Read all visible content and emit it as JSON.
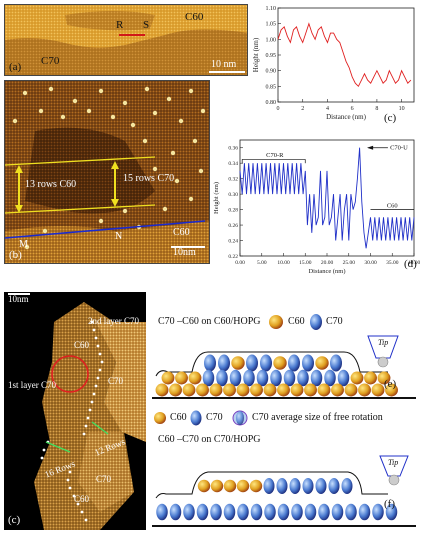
{
  "panel_a": {
    "label": "(a)",
    "c60": "C60",
    "c70": "C70",
    "point_r": "R",
    "point_s": "S",
    "scale": "10 nm"
  },
  "panel_b": {
    "label": "(b)",
    "rows_left": "13 rows C60",
    "rows_right": "15 rows C70",
    "point_m": "M",
    "point_n": "N",
    "c60": "C60",
    "scale": "10nm"
  },
  "panel_c_top": {
    "label": "(c)",
    "ylabel": "Height (nm)",
    "xlabel": "Distance (nm)"
  },
  "panel_d": {
    "label": "(d)",
    "ylabel": "Height (nm)",
    "xlabel": "Distance (nm)",
    "ann_c70r": "C70-R",
    "ann_c70u": "C70-U",
    "ann_c60": "C60"
  },
  "panel_c_bottom": {
    "label": "(c)",
    "scale": "10nm",
    "second_layer": "2nd layer C70",
    "first_layer": "1st layer C70",
    "c60_top": "C60",
    "c70_mid": "C70",
    "c60_bottom": "C60",
    "c70_bottom": "C70",
    "rows16": "16 Rows",
    "rows12": "12 Rows"
  },
  "panel_e": {
    "label": "(e)",
    "title": "C70 –C60 on C60/HOPG",
    "legend_c60": "C60",
    "legend_c70": "C70",
    "tip": "Tip"
  },
  "panel_f": {
    "label": "(f)",
    "legend_c60": "C60",
    "legend_c70": "C70",
    "legend_rot": "C70 average size of free rotation",
    "title": "C60 –C70 on C70/HOPG",
    "tip": "Tip"
  },
  "chart_data": [
    {
      "panel": "(c)",
      "type": "line",
      "xlabel": "Distance (nm)",
      "ylabel": "Height (nm)",
      "xlim": [
        0,
        11
      ],
      "ylim": [
        0.8,
        1.1
      ],
      "xticks": [
        0,
        2,
        4,
        6,
        8,
        10
      ],
      "yticks": [
        0.8,
        0.85,
        0.9,
        0.95,
        1.0,
        1.05,
        1.1
      ],
      "grid": false,
      "color": "#e02020",
      "x": [
        0.0,
        0.25,
        0.5,
        0.75,
        1.0,
        1.25,
        1.5,
        1.75,
        2.0,
        2.25,
        2.5,
        2.75,
        3.0,
        3.25,
        3.5,
        3.75,
        4.0,
        4.25,
        4.5,
        4.75,
        5.0,
        5.25,
        5.5,
        5.75,
        6.0,
        6.25,
        6.5,
        6.75,
        7.0,
        7.25,
        7.5,
        7.75,
        8.0,
        8.25,
        8.5,
        8.75,
        9.0,
        9.25,
        9.5,
        9.75,
        10.0,
        10.25,
        10.5,
        10.75
      ],
      "y": [
        1.0,
        1.03,
        1.04,
        1.01,
        0.99,
        1.03,
        1.04,
        1.01,
        0.99,
        1.02,
        1.05,
        1.02,
        1.0,
        1.03,
        1.04,
        1.01,
        0.99,
        1.02,
        1.02,
        1.0,
        0.99,
        0.96,
        0.93,
        0.91,
        0.88,
        0.86,
        0.85,
        0.87,
        0.89,
        0.87,
        0.86,
        0.88,
        0.9,
        0.88,
        0.86,
        0.87,
        0.9,
        0.88,
        0.86,
        0.87,
        0.9,
        0.88,
        0.86,
        0.87
      ]
    },
    {
      "panel": "(d)",
      "type": "line",
      "xlabel": "Distance (nm)",
      "ylabel": "Height (nm)",
      "xlim": [
        0,
        40
      ],
      "ylim": [
        0.22,
        0.37
      ],
      "xticks": [
        0,
        5,
        10,
        15,
        20,
        25,
        30,
        35,
        40
      ],
      "xtick_labels": [
        "0.00",
        "5.00",
        "10.00",
        "15.00",
        "20.00",
        "25.00",
        "30.00",
        "35.00",
        "40.00"
      ],
      "yticks": [
        0.22,
        0.24,
        0.26,
        0.28,
        0.3,
        0.32,
        0.34,
        0.36
      ],
      "grid": false,
      "color": "#2030c8",
      "x": [
        0.0,
        0.5,
        1.0,
        1.5,
        2.0,
        2.5,
        3.0,
        3.5,
        4.0,
        4.5,
        5.0,
        5.5,
        6.0,
        6.5,
        7.0,
        7.5,
        8.0,
        8.5,
        9.0,
        9.5,
        10.0,
        10.5,
        11.0,
        11.5,
        12.0,
        12.5,
        13.0,
        13.5,
        14.0,
        14.5,
        15.0,
        15.5,
        16.0,
        16.5,
        17.0,
        17.5,
        18.0,
        18.5,
        19.0,
        19.5,
        20.0,
        20.5,
        21.0,
        21.5,
        22.0,
        22.5,
        23.0,
        23.5,
        24.0,
        24.5,
        25.0,
        25.5,
        26.0,
        26.5,
        27.0,
        27.5,
        28.0,
        28.5,
        29.0,
        29.5,
        30.0,
        30.5,
        31.0,
        31.5,
        32.0,
        32.5,
        33.0,
        33.5,
        34.0,
        34.5,
        35.0,
        35.5,
        36.0,
        36.5,
        37.0,
        37.5,
        38.0,
        38.5,
        39.0,
        39.5,
        40.0
      ],
      "y": [
        0.33,
        0.3,
        0.34,
        0.3,
        0.34,
        0.3,
        0.34,
        0.3,
        0.34,
        0.3,
        0.34,
        0.3,
        0.34,
        0.3,
        0.34,
        0.3,
        0.34,
        0.3,
        0.34,
        0.3,
        0.34,
        0.3,
        0.34,
        0.3,
        0.34,
        0.3,
        0.34,
        0.3,
        0.34,
        0.3,
        0.33,
        0.26,
        0.3,
        0.25,
        0.3,
        0.26,
        0.27,
        0.33,
        0.26,
        0.27,
        0.33,
        0.26,
        0.27,
        0.3,
        0.24,
        0.27,
        0.3,
        0.24,
        0.28,
        0.3,
        0.24,
        0.3,
        0.28,
        0.29,
        0.32,
        0.36,
        0.29,
        0.25,
        0.23,
        0.25,
        0.27,
        0.24,
        0.27,
        0.24,
        0.27,
        0.24,
        0.27,
        0.24,
        0.27,
        0.24,
        0.27,
        0.24,
        0.27,
        0.24,
        0.27,
        0.24,
        0.27,
        0.24,
        0.27,
        0.24,
        0.27
      ]
    }
  ]
}
